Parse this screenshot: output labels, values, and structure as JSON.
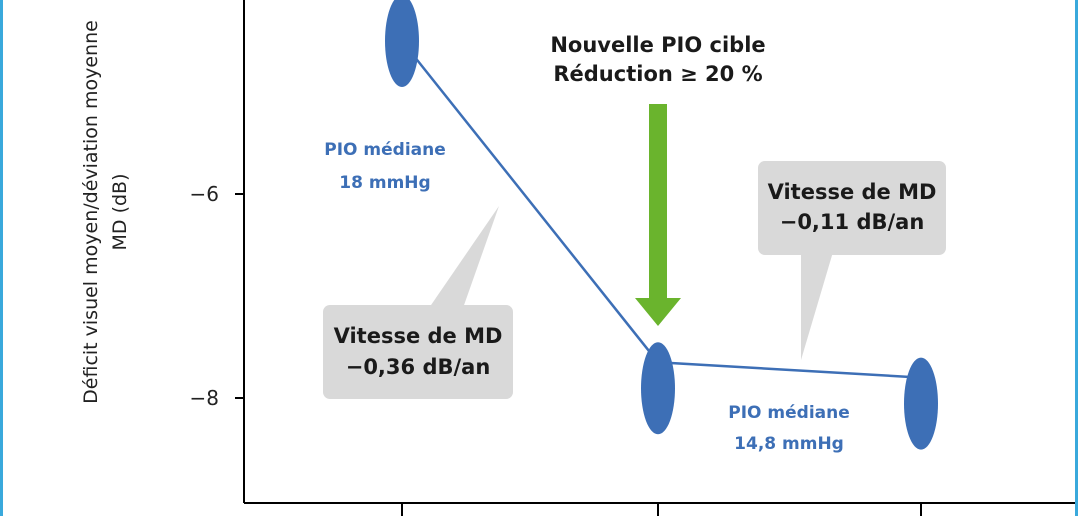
{
  "colors": {
    "frame": "#39a9dc",
    "series": "#3d6fb6",
    "arrow": "#6ab42d",
    "callout_bg": "#d9d9d9",
    "text": "#1a1a1a"
  },
  "chart_data": {
    "type": "line",
    "title": "",
    "xlabel": "",
    "ylabel": "Déficit visuel moyen/déviation moyenne MD (dB)",
    "ylabel_lines": [
      "Déficit visuel moyen/déviation moyenne",
      "MD (dB)"
    ],
    "y_ticks": [
      {
        "value": -6,
        "label": "−6"
      },
      {
        "value": -8,
        "label": "−8"
      }
    ],
    "ylim": [
      -9.0,
      -4.1
    ],
    "xlim": [
      0.4,
      3.4
    ],
    "x_ticks": [
      1,
      2,
      3
    ],
    "grid": false,
    "series": [
      {
        "x": [
          1,
          2,
          3
        ],
        "values": [
          -4.5,
          -7.65,
          -7.8
        ],
        "color": "#3d6fb6"
      }
    ],
    "annotations": {
      "median_before": {
        "line1": "PIO médiane",
        "line2": "18 mmHg"
      },
      "median_after": {
        "line1": "PIO médiane",
        "line2": "14,8 mmHg"
      },
      "rate_before": {
        "line1": "Vitesse de MD",
        "line2": "−0,36 dB/an"
      },
      "rate_after": {
        "line1": "Vitesse de MD",
        "line2": "−0,11 dB/an"
      },
      "target": {
        "line1": "Nouvelle PIO cible",
        "line2": "Réduction ≥ 20 %"
      }
    }
  }
}
